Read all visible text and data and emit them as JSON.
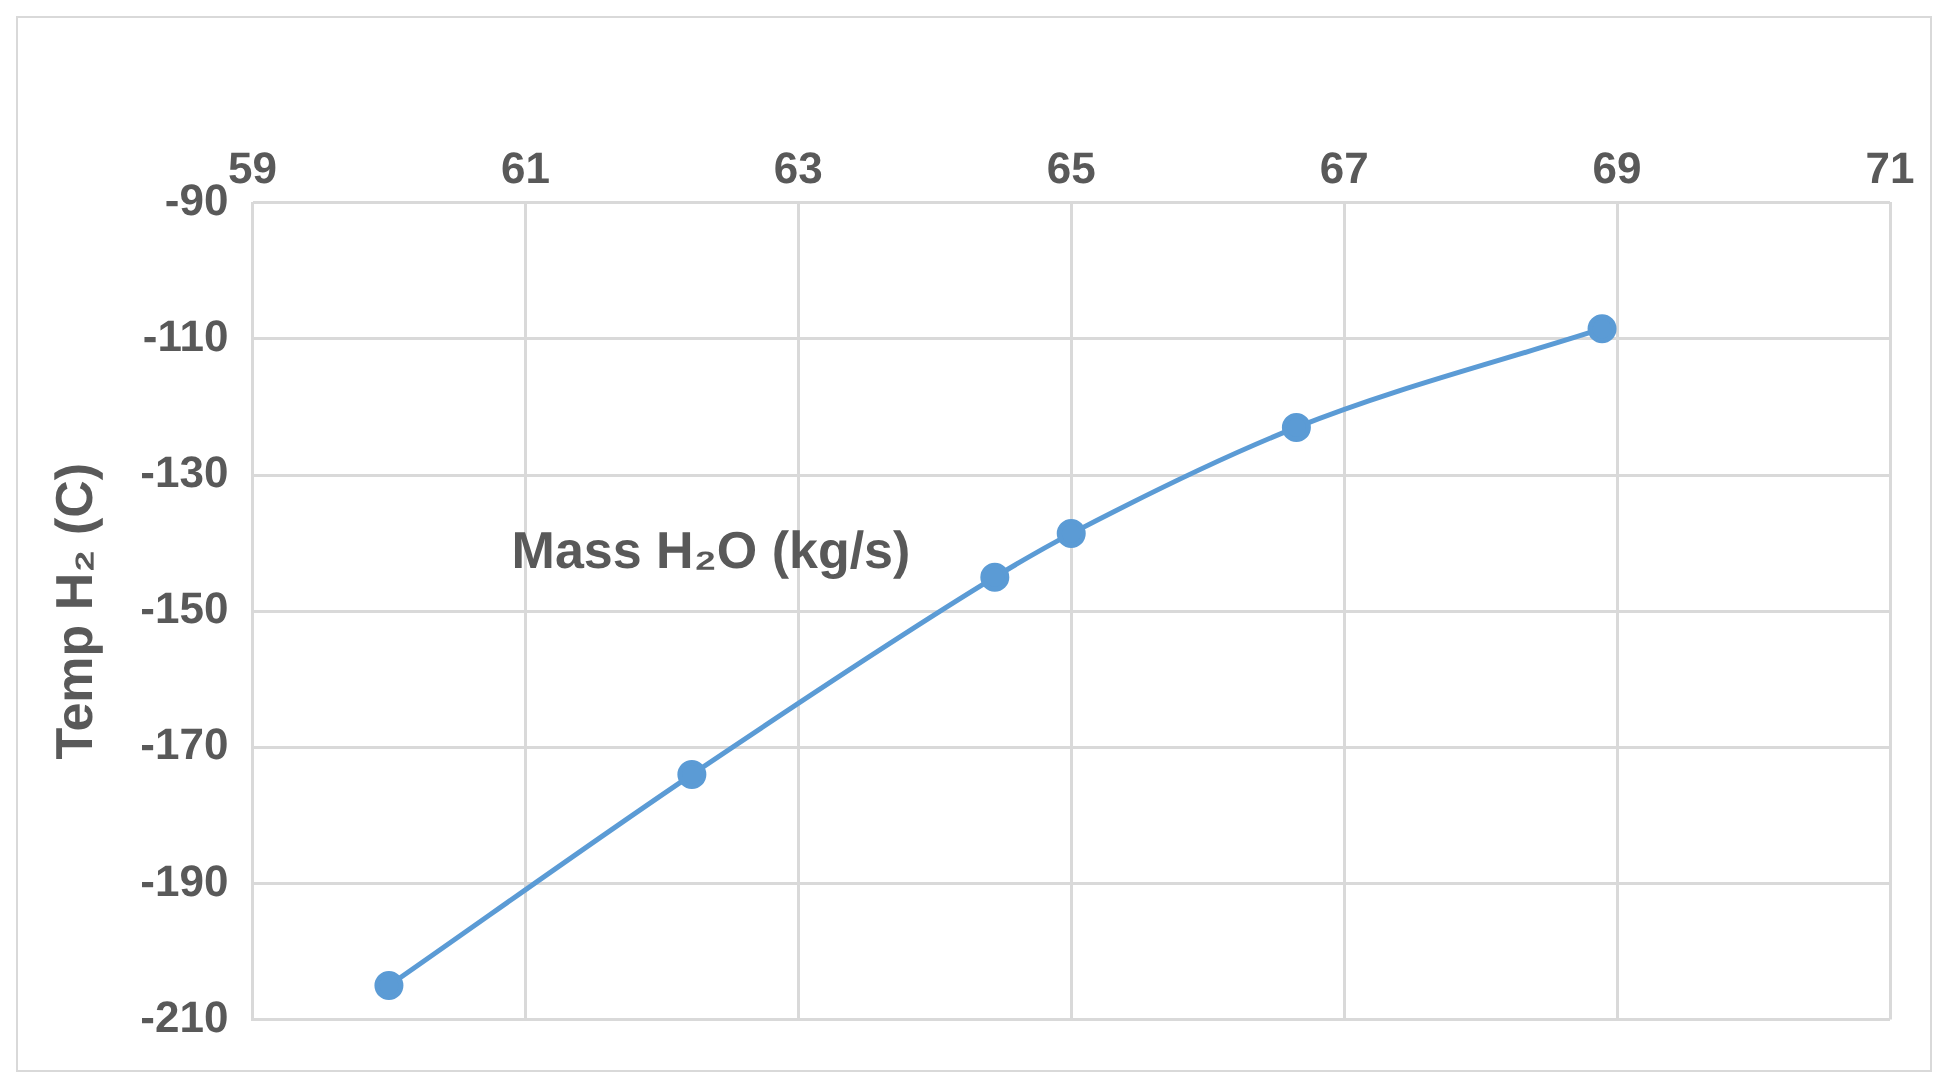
{
  "chart_data": {
    "type": "line",
    "xlabel": "Mass H₂O (kg/s)",
    "ylabel": "Temp H₂ (C)",
    "x": [
      60,
      62.22,
      64.44,
      65,
      66.65,
      68.89
    ],
    "series": [
      {
        "color": "#5b9bd5",
        "values": [
          -205,
          -174,
          -145,
          -138.6,
          -123,
          -108.5
        ]
      }
    ],
    "xlim": [
      59,
      71
    ],
    "xticks": [
      59,
      61,
      63,
      65,
      67,
      69,
      71
    ],
    "ylim": [
      -210,
      -90
    ],
    "yticks": [
      -210,
      -190,
      -170,
      -150,
      -130,
      -110,
      -90
    ],
    "grid": true,
    "legend": false,
    "marker": "circle",
    "line_style": "solid"
  }
}
